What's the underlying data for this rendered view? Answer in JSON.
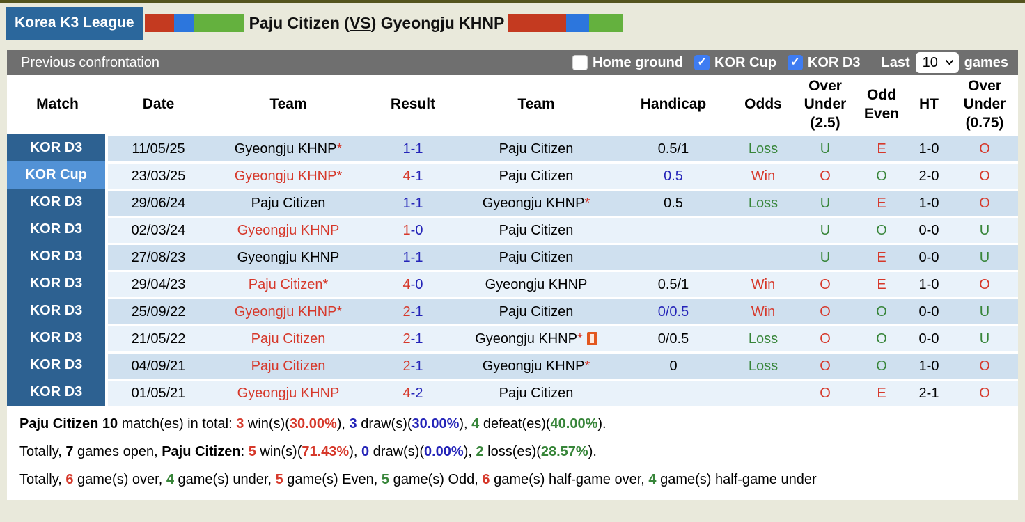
{
  "palette": {
    "red": "#d6382a",
    "blue": "#2424b8",
    "green": "#378539",
    "bar_red": "#c43a20",
    "bar_blue": "#2c76dd",
    "bar_green": "#64b13e",
    "badge_bg": "#2b679c",
    "kor_d3_bg": "#2d6191",
    "kor_cup_bg": "#5292d6",
    "row_dark": "#cfe0ef",
    "row_light": "#e9f2fa",
    "section_bg": "#6f6f6f",
    "checkbox_blue": "#3e7cf2"
  },
  "icons": {
    "checkmark": "✓",
    "chevron_down": "∨",
    "star": "*",
    "red_card": "red-card"
  },
  "header": {
    "badge": "Korea K3 League",
    "title": {
      "home": "Paju Citizen",
      "open": " (",
      "vs": "VS",
      "close": ") ",
      "away": "Gyeongju KHNP"
    },
    "bars": [
      {
        "name": "home-form-bar",
        "segments": [
          {
            "c": "bar_red",
            "pct": 30
          },
          {
            "c": "bar_blue",
            "pct": 20
          },
          {
            "c": "bar_green",
            "pct": 50
          }
        ],
        "width": 142
      },
      {
        "name": "away-form-bar",
        "segments": [
          {
            "c": "bar_red",
            "pct": 50
          },
          {
            "c": "bar_blue",
            "pct": 20
          },
          {
            "c": "bar_green",
            "pct": 30
          }
        ],
        "width": 165
      }
    ]
  },
  "filter": {
    "section_title": "Previous confrontation",
    "home_ground": {
      "label": "Home ground",
      "checked": false
    },
    "kor_cup": {
      "label": "KOR Cup",
      "checked": true
    },
    "kor_d3": {
      "label": "KOR D3",
      "checked": true
    },
    "last_label": "Last",
    "games_count": "10",
    "games_label": "games"
  },
  "table": {
    "columns": [
      {
        "label": "Match",
        "name": "match"
      },
      {
        "label": "Date",
        "name": "date"
      },
      {
        "label": "Team",
        "name": "team-home"
      },
      {
        "label": "Result",
        "name": "result"
      },
      {
        "label": "Team",
        "name": "team-away"
      },
      {
        "label": "Handicap",
        "name": "handicap"
      },
      {
        "label": "Odds",
        "name": "odds"
      },
      {
        "label": "Over Under (2.5)",
        "name": "over-under-2-5"
      },
      {
        "label": "Odd Even",
        "name": "odd-even"
      },
      {
        "label": "HT",
        "name": "ht"
      },
      {
        "label": "Over Under (0.75)",
        "name": "over-under-0-75"
      }
    ],
    "rows": [
      {
        "league": "KOR D3",
        "league_type": "d3",
        "date": "11/05/25",
        "team1": {
          "name": "Gyeongju KHNP",
          "color": "black",
          "star": true,
          "card": false
        },
        "result": {
          "home": "1",
          "away": "1",
          "winner": false
        },
        "team2": {
          "name": "Paju Citizen",
          "color": "black",
          "star": false,
          "card": false
        },
        "handicap": {
          "text": "0.5/1",
          "color": "black"
        },
        "odds": {
          "text": "Loss",
          "color": "green"
        },
        "over_under_2_5": {
          "text": "U",
          "color": "green"
        },
        "odd_even": {
          "text": "E",
          "color": "red"
        },
        "ht": "1-0",
        "over_under_0_75": {
          "text": "O",
          "color": "red"
        }
      },
      {
        "league": "KOR Cup",
        "league_type": "cup",
        "date": "23/03/25",
        "team1": {
          "name": "Gyeongju KHNP",
          "color": "red",
          "star": true,
          "card": false
        },
        "result": {
          "home": "4",
          "away": "1",
          "winner": true
        },
        "team2": {
          "name": "Paju Citizen",
          "color": "black",
          "star": false,
          "card": false
        },
        "handicap": {
          "text": "0.5",
          "color": "blue"
        },
        "odds": {
          "text": "Win",
          "color": "red"
        },
        "over_under_2_5": {
          "text": "O",
          "color": "red"
        },
        "odd_even": {
          "text": "O",
          "color": "green"
        },
        "ht": "2-0",
        "over_under_0_75": {
          "text": "O",
          "color": "red"
        }
      },
      {
        "league": "KOR D3",
        "league_type": "d3",
        "date": "29/06/24",
        "team1": {
          "name": "Paju Citizen",
          "color": "black",
          "star": false,
          "card": false
        },
        "result": {
          "home": "1",
          "away": "1",
          "winner": false
        },
        "team2": {
          "name": "Gyeongju KHNP",
          "color": "black",
          "star": true,
          "card": false
        },
        "handicap": {
          "text": "0.5",
          "color": "black"
        },
        "odds": {
          "text": "Loss",
          "color": "green"
        },
        "over_under_2_5": {
          "text": "U",
          "color": "green"
        },
        "odd_even": {
          "text": "E",
          "color": "red"
        },
        "ht": "1-0",
        "over_under_0_75": {
          "text": "O",
          "color": "red"
        }
      },
      {
        "league": "KOR D3",
        "league_type": "d3",
        "date": "02/03/24",
        "team1": {
          "name": "Gyeongju KHNP",
          "color": "red",
          "star": false,
          "card": false
        },
        "result": {
          "home": "1",
          "away": "0",
          "winner": true
        },
        "team2": {
          "name": "Paju Citizen",
          "color": "black",
          "star": false,
          "card": false
        },
        "handicap": {
          "text": "",
          "color": "black"
        },
        "odds": {
          "text": "",
          "color": "black"
        },
        "over_under_2_5": {
          "text": "U",
          "color": "green"
        },
        "odd_even": {
          "text": "O",
          "color": "green"
        },
        "ht": "0-0",
        "over_under_0_75": {
          "text": "U",
          "color": "green"
        }
      },
      {
        "league": "KOR D3",
        "league_type": "d3",
        "date": "27/08/23",
        "team1": {
          "name": "Gyeongju KHNP",
          "color": "black",
          "star": false,
          "card": false
        },
        "result": {
          "home": "1",
          "away": "1",
          "winner": false
        },
        "team2": {
          "name": "Paju Citizen",
          "color": "black",
          "star": false,
          "card": false
        },
        "handicap": {
          "text": "",
          "color": "black"
        },
        "odds": {
          "text": "",
          "color": "black"
        },
        "over_under_2_5": {
          "text": "U",
          "color": "green"
        },
        "odd_even": {
          "text": "E",
          "color": "red"
        },
        "ht": "0-0",
        "over_under_0_75": {
          "text": "U",
          "color": "green"
        }
      },
      {
        "league": "KOR D3",
        "league_type": "d3",
        "date": "29/04/23",
        "team1": {
          "name": "Paju Citizen",
          "color": "red",
          "star": true,
          "card": false
        },
        "result": {
          "home": "4",
          "away": "0",
          "winner": true
        },
        "team2": {
          "name": "Gyeongju KHNP",
          "color": "black",
          "star": false,
          "card": false
        },
        "handicap": {
          "text": "0.5/1",
          "color": "black"
        },
        "odds": {
          "text": "Win",
          "color": "red"
        },
        "over_under_2_5": {
          "text": "O",
          "color": "red"
        },
        "odd_even": {
          "text": "E",
          "color": "red"
        },
        "ht": "1-0",
        "over_under_0_75": {
          "text": "O",
          "color": "red"
        }
      },
      {
        "league": "KOR D3",
        "league_type": "d3",
        "date": "25/09/22",
        "team1": {
          "name": "Gyeongju KHNP",
          "color": "red",
          "star": true,
          "card": false
        },
        "result": {
          "home": "2",
          "away": "1",
          "winner": true
        },
        "team2": {
          "name": "Paju Citizen",
          "color": "black",
          "star": false,
          "card": false
        },
        "handicap": {
          "text": "0/0.5",
          "color": "blue"
        },
        "odds": {
          "text": "Win",
          "color": "red"
        },
        "over_under_2_5": {
          "text": "O",
          "color": "red"
        },
        "odd_even": {
          "text": "O",
          "color": "green"
        },
        "ht": "0-0",
        "over_under_0_75": {
          "text": "U",
          "color": "green"
        }
      },
      {
        "league": "KOR D3",
        "league_type": "d3",
        "date": "21/05/22",
        "team1": {
          "name": "Paju Citizen",
          "color": "red",
          "star": false,
          "card": false
        },
        "result": {
          "home": "2",
          "away": "1",
          "winner": true
        },
        "team2": {
          "name": "Gyeongju KHNP",
          "color": "black",
          "star": true,
          "card": true
        },
        "handicap": {
          "text": "0/0.5",
          "color": "black"
        },
        "odds": {
          "text": "Loss",
          "color": "green"
        },
        "over_under_2_5": {
          "text": "O",
          "color": "red"
        },
        "odd_even": {
          "text": "O",
          "color": "green"
        },
        "ht": "0-0",
        "over_under_0_75": {
          "text": "U",
          "color": "green"
        }
      },
      {
        "league": "KOR D3",
        "league_type": "d3",
        "date": "04/09/21",
        "team1": {
          "name": "Paju Citizen",
          "color": "red",
          "star": false,
          "card": false
        },
        "result": {
          "home": "2",
          "away": "1",
          "winner": true
        },
        "team2": {
          "name": "Gyeongju KHNP",
          "color": "black",
          "star": true,
          "card": false
        },
        "handicap": {
          "text": "0",
          "color": "black"
        },
        "odds": {
          "text": "Loss",
          "color": "green"
        },
        "over_under_2_5": {
          "text": "O",
          "color": "red"
        },
        "odd_even": {
          "text": "O",
          "color": "green"
        },
        "ht": "1-0",
        "over_under_0_75": {
          "text": "O",
          "color": "red"
        }
      },
      {
        "league": "KOR D3",
        "league_type": "d3",
        "date": "01/05/21",
        "team1": {
          "name": "Gyeongju KHNP",
          "color": "red",
          "star": false,
          "card": false
        },
        "result": {
          "home": "4",
          "away": "2",
          "winner": true
        },
        "team2": {
          "name": "Paju Citizen",
          "color": "black",
          "star": false,
          "card": false
        },
        "handicap": {
          "text": "",
          "color": "black"
        },
        "odds": {
          "text": "",
          "color": "black"
        },
        "over_under_2_5": {
          "text": "O",
          "color": "red"
        },
        "odd_even": {
          "text": "E",
          "color": "red"
        },
        "ht": "2-1",
        "over_under_0_75": {
          "text": "O",
          "color": "red"
        }
      }
    ]
  },
  "summary": {
    "lines": [
      [
        {
          "t": "Paju Citizen 10",
          "b": true
        },
        {
          "t": " match(es) in total: "
        },
        {
          "t": "3",
          "c": "red",
          "b": true
        },
        {
          "t": " win(s)("
        },
        {
          "t": "30.00%",
          "c": "red",
          "b": true
        },
        {
          "t": "), "
        },
        {
          "t": "3",
          "c": "blue",
          "b": true
        },
        {
          "t": " draw(s)("
        },
        {
          "t": "30.00%",
          "c": "blue",
          "b": true
        },
        {
          "t": "), "
        },
        {
          "t": "4",
          "c": "green",
          "b": true
        },
        {
          "t": " defeat(es)("
        },
        {
          "t": "40.00%",
          "c": "green",
          "b": true
        },
        {
          "t": ")."
        }
      ],
      [
        {
          "t": "Totally, "
        },
        {
          "t": "7",
          "b": true
        },
        {
          "t": " games open, "
        },
        {
          "t": "Paju Citizen",
          "b": true
        },
        {
          "t": ": "
        },
        {
          "t": "5",
          "c": "red",
          "b": true
        },
        {
          "t": " win(s)("
        },
        {
          "t": "71.43%",
          "c": "red",
          "b": true
        },
        {
          "t": "), "
        },
        {
          "t": "0",
          "c": "blue",
          "b": true
        },
        {
          "t": " draw(s)("
        },
        {
          "t": "0.00%",
          "c": "blue",
          "b": true
        },
        {
          "t": "), "
        },
        {
          "t": "2",
          "c": "green",
          "b": true
        },
        {
          "t": " loss(es)("
        },
        {
          "t": "28.57%",
          "c": "green",
          "b": true
        },
        {
          "t": ")."
        }
      ],
      [
        {
          "t": "Totally, "
        },
        {
          "t": "6",
          "c": "red",
          "b": true
        },
        {
          "t": " game(s) over, "
        },
        {
          "t": "4",
          "c": "green",
          "b": true
        },
        {
          "t": " game(s) under, "
        },
        {
          "t": "5",
          "c": "red",
          "b": true
        },
        {
          "t": " game(s) Even, "
        },
        {
          "t": "5",
          "c": "green",
          "b": true
        },
        {
          "t": " game(s) Odd, "
        },
        {
          "t": "6",
          "c": "red",
          "b": true
        },
        {
          "t": " game(s) half-game over, "
        },
        {
          "t": "4",
          "c": "green",
          "b": true
        },
        {
          "t": " game(s) half-game under"
        }
      ]
    ]
  }
}
